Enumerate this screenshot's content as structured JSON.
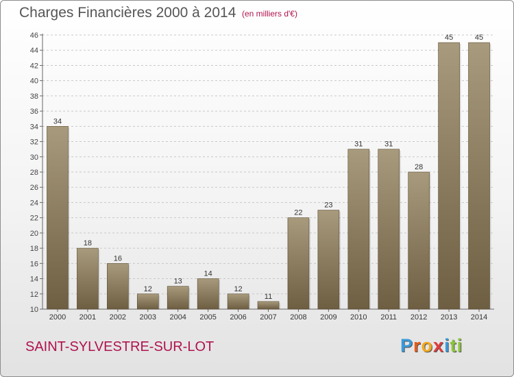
{
  "header": {
    "title": "Charges Financières 2000 à 2014",
    "unit_note": "(en milliers d'€)"
  },
  "footer": {
    "commune": "SAINT-SYLVESTRE-SUR-LOT",
    "logo_text": "Proxiti"
  },
  "colors": {
    "bar_top": "#a89a7c",
    "bar_bottom": "#6e5e42",
    "accent": "#b0124e",
    "logo": [
      "#3b9ad9",
      "#e65c1a",
      "#f2a81d",
      "#e03c3c",
      "#3b9ad9",
      "#8dc63f",
      "#8dc63f"
    ]
  },
  "chart_data": {
    "type": "bar",
    "categories": [
      "2000",
      "2001",
      "2002",
      "2003",
      "2004",
      "2005",
      "2006",
      "2007",
      "2008",
      "2009",
      "2010",
      "2011",
      "2012",
      "2013",
      "2014"
    ],
    "values": [
      34,
      18,
      16,
      12,
      13,
      14,
      12,
      11,
      22,
      23,
      31,
      31,
      28,
      45,
      45
    ],
    "ylim": [
      10,
      46
    ],
    "yticks": [
      10,
      12,
      14,
      16,
      18,
      20,
      22,
      24,
      26,
      28,
      30,
      32,
      34,
      36,
      38,
      40,
      42,
      44,
      46
    ],
    "grid": "horizontal-dashed",
    "legend": "none"
  }
}
